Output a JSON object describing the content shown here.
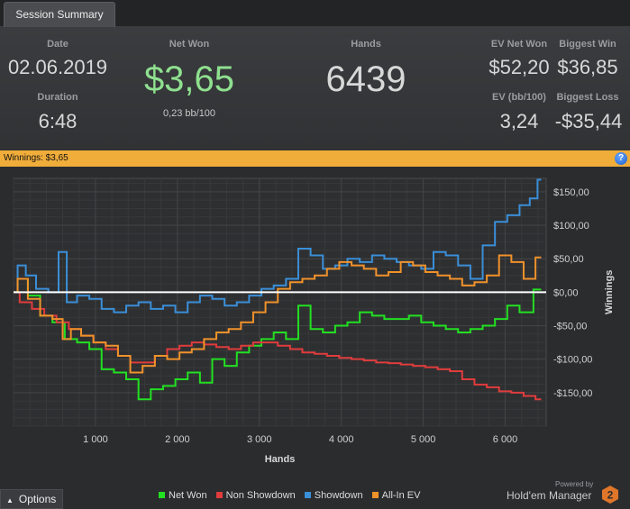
{
  "tab": {
    "label": "Session Summary"
  },
  "summary": {
    "date_label": "Date",
    "date_value": "02.06.2019",
    "duration_label": "Duration",
    "duration_value": "6:48",
    "net_won_label": "Net Won",
    "net_won_value": "$3,65",
    "net_won_sub": "0,23 bb/100",
    "hands_label": "Hands",
    "hands_value": "6439",
    "ev_net_won_label": "EV Net Won",
    "ev_net_won_value": "$52,20",
    "biggest_win_label": "Biggest Win",
    "biggest_win_value": "$36,85",
    "ev_bb100_label": "EV (bb/100)",
    "ev_bb100_value": "3,24",
    "biggest_loss_label": "Biggest Loss",
    "biggest_loss_value": "-$35,44"
  },
  "winnings_bar": {
    "text": "Winnings: $3,65",
    "help_icon": "question-icon"
  },
  "colors": {
    "net_won": "#22e022",
    "non_showdown": "#e03c3c",
    "showdown": "#3a8fd8",
    "all_in_ev": "#f0922a",
    "accent_bar": "#f0ad3a",
    "net_won_text": "#8fe08f"
  },
  "chart_data": {
    "type": "line",
    "xlabel": "Hands",
    "ylabel": "Winnings",
    "xlim": [
      0,
      6500
    ],
    "ylim": [
      -200,
      170
    ],
    "x_ticks": [
      1000,
      2000,
      3000,
      4000,
      5000,
      6000
    ],
    "x_tick_labels": [
      "1 000",
      "2 000",
      "3 000",
      "4 000",
      "5 000",
      "6 000"
    ],
    "y_ticks": [
      150,
      100,
      50,
      0,
      -50,
      -100,
      -150
    ],
    "y_tick_labels": [
      "$150,00",
      "$100,00",
      "$50,00",
      "$0,00",
      "-$50,00",
      "-$100,00",
      "-$150,00"
    ],
    "grid": true,
    "series": [
      {
        "name": "Net Won",
        "color": "#22e022",
        "x": [
          0,
          100,
          250,
          400,
          550,
          700,
          850,
          1000,
          1150,
          1300,
          1450,
          1600,
          1750,
          1900,
          2050,
          2200,
          2350,
          2500,
          2650,
          2800,
          2950,
          3100,
          3250,
          3400,
          3550,
          3700,
          3850,
          4000,
          4150,
          4300,
          4450,
          4600,
          4750,
          4900,
          5050,
          5200,
          5350,
          5500,
          5650,
          5800,
          5950,
          6100,
          6250,
          6439
        ],
        "y": [
          0,
          20,
          -5,
          -35,
          -45,
          -70,
          -75,
          -85,
          -115,
          -120,
          -130,
          -160,
          -145,
          -140,
          -130,
          -120,
          -135,
          -100,
          -110,
          -90,
          -80,
          -70,
          -60,
          -70,
          -20,
          -55,
          -60,
          -50,
          -45,
          -30,
          -35,
          -40,
          -40,
          -35,
          -45,
          -50,
          -55,
          -60,
          -55,
          -50,
          -40,
          -20,
          -30,
          4
        ]
      },
      {
        "name": "Non Showdown",
        "color": "#e03c3c",
        "x": [
          0,
          150,
          300,
          450,
          600,
          750,
          900,
          1050,
          1200,
          1350,
          1500,
          1650,
          1800,
          1950,
          2100,
          2250,
          2400,
          2550,
          2700,
          2850,
          3000,
          3150,
          3300,
          3450,
          3600,
          3750,
          3900,
          4050,
          4200,
          4350,
          4500,
          4650,
          4800,
          4950,
          5100,
          5250,
          5400,
          5550,
          5700,
          5850,
          6000,
          6150,
          6300,
          6439
        ],
        "y": [
          0,
          -15,
          -25,
          -35,
          -45,
          -55,
          -65,
          -75,
          -85,
          -95,
          -105,
          -105,
          -95,
          -85,
          -80,
          -75,
          -78,
          -82,
          -85,
          -80,
          -75,
          -75,
          -80,
          -85,
          -90,
          -92,
          -95,
          -98,
          -100,
          -102,
          -105,
          -106,
          -108,
          -110,
          -112,
          -115,
          -118,
          -130,
          -138,
          -142,
          -148,
          -150,
          -155,
          -160
        ]
      },
      {
        "name": "Showdown",
        "color": "#3a8fd8",
        "x": [
          0,
          100,
          200,
          350,
          500,
          600,
          700,
          850,
          1000,
          1150,
          1300,
          1450,
          1600,
          1750,
          1900,
          2050,
          2200,
          2350,
          2500,
          2650,
          2800,
          2950,
          3100,
          3250,
          3400,
          3550,
          3700,
          3850,
          4000,
          4150,
          4300,
          4450,
          4600,
          4750,
          4900,
          5050,
          5200,
          5350,
          5500,
          5650,
          5800,
          5950,
          6100,
          6250,
          6350,
          6439
        ],
        "y": [
          0,
          40,
          25,
          5,
          0,
          60,
          -15,
          -5,
          -10,
          -25,
          -30,
          -20,
          -15,
          -25,
          -20,
          -30,
          -15,
          -5,
          -10,
          -20,
          -15,
          -5,
          5,
          10,
          20,
          65,
          55,
          35,
          40,
          50,
          45,
          55,
          50,
          45,
          40,
          35,
          60,
          55,
          40,
          20,
          70,
          105,
          115,
          130,
          140,
          168
        ]
      },
      {
        "name": "All-In EV",
        "color": "#f0922a",
        "x": [
          0,
          100,
          250,
          400,
          550,
          650,
          750,
          900,
          1050,
          1200,
          1350,
          1500,
          1650,
          1800,
          1950,
          2100,
          2250,
          2400,
          2550,
          2700,
          2850,
          3000,
          3150,
          3300,
          3450,
          3600,
          3750,
          3900,
          4050,
          4200,
          4350,
          4500,
          4650,
          4800,
          4950,
          5100,
          5250,
          5400,
          5550,
          5700,
          5850,
          6000,
          6150,
          6300,
          6439
        ],
        "y": [
          0,
          20,
          -10,
          -35,
          -40,
          -70,
          -55,
          -65,
          -75,
          -80,
          -95,
          -120,
          -110,
          -95,
          -100,
          -90,
          -85,
          -70,
          -60,
          -55,
          -45,
          -30,
          -15,
          5,
          15,
          20,
          25,
          35,
          45,
          40,
          35,
          25,
          30,
          45,
          40,
          30,
          25,
          20,
          10,
          15,
          25,
          55,
          45,
          20,
          52
        ]
      }
    ]
  },
  "footer": {
    "options_label": "Options",
    "options_icon": "caret-up-icon",
    "powered_by": "Powered by",
    "brand_name": "Hold'em Manager",
    "brand_logo": "hm2-logo"
  }
}
